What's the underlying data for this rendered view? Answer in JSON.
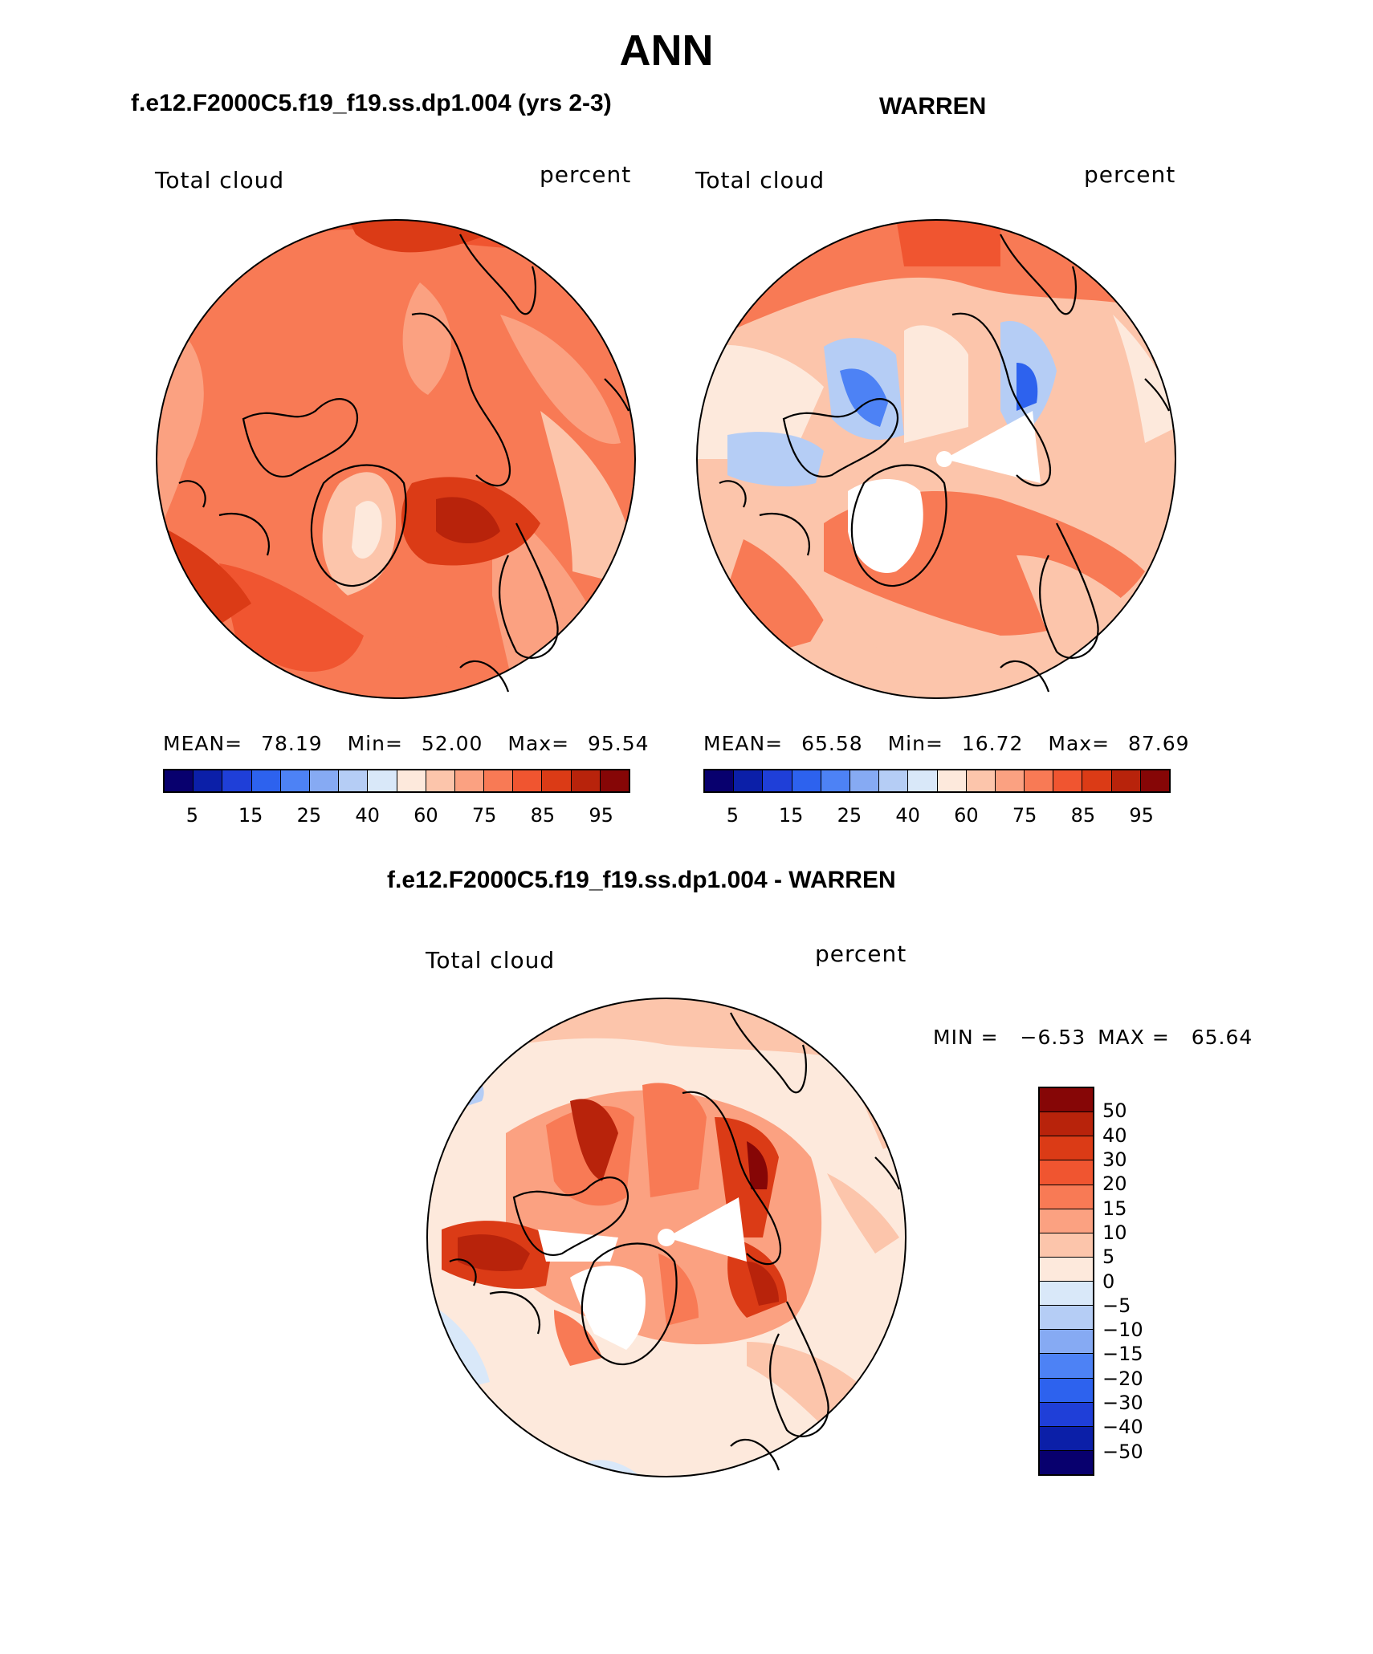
{
  "title": "ANN",
  "panels": {
    "model": {
      "case_title": "f.e12.F2000C5.f19_f19.ss.dp1.004 (yrs 2-3)",
      "variable": "Total cloud",
      "units": "percent",
      "mean_label": "MEAN=",
      "mean": "78.19",
      "min_label": "Min=",
      "min": "52.00",
      "max_label": "Max=",
      "max": "95.54"
    },
    "obs": {
      "case_title": "WARREN",
      "variable": "Total cloud",
      "units": "percent",
      "mean_label": "MEAN=",
      "mean": "65.58",
      "min_label": "Min=",
      "min": "16.72",
      "max_label": "Max=",
      "max": "87.69"
    },
    "diff": {
      "case_title": "f.e12.F2000C5.f19_f19.ss.dp1.004 - WARREN",
      "variable": "Total cloud",
      "units": "percent",
      "min_label": "MIN =",
      "min": "−6.53",
      "max_label": "MAX =",
      "max": "65.64"
    }
  },
  "colorbar_abs": {
    "colors": [
      "#08006e",
      "#0b1fa8",
      "#1f3fd8",
      "#2d62ee",
      "#4d82f5",
      "#86aaf3",
      "#b5cdf5",
      "#d9e8f9",
      "#fde9dc",
      "#fcc5ab",
      "#fba181",
      "#f87a55",
      "#f05530",
      "#db3b16",
      "#b8230b",
      "#860606"
    ],
    "tick_labels": [
      "5",
      "15",
      "25",
      "40",
      "60",
      "75",
      "85",
      "95"
    ]
  },
  "colorbar_diff": {
    "colors": [
      "#860606",
      "#b8230b",
      "#db3b16",
      "#f05530",
      "#f87a55",
      "#fba181",
      "#fcc5ab",
      "#fde9dc",
      "#d9e8f9",
      "#b5cdf5",
      "#86aaf3",
      "#4d82f5",
      "#2d62ee",
      "#1f3fd8",
      "#0b1fa8",
      "#08006e"
    ],
    "tick_labels": [
      "50",
      "40",
      "30",
      "20",
      "15",
      "10",
      "5",
      "0",
      "−5",
      "−10",
      "−15",
      "−20",
      "−30",
      "−40",
      "−50"
    ]
  }
}
